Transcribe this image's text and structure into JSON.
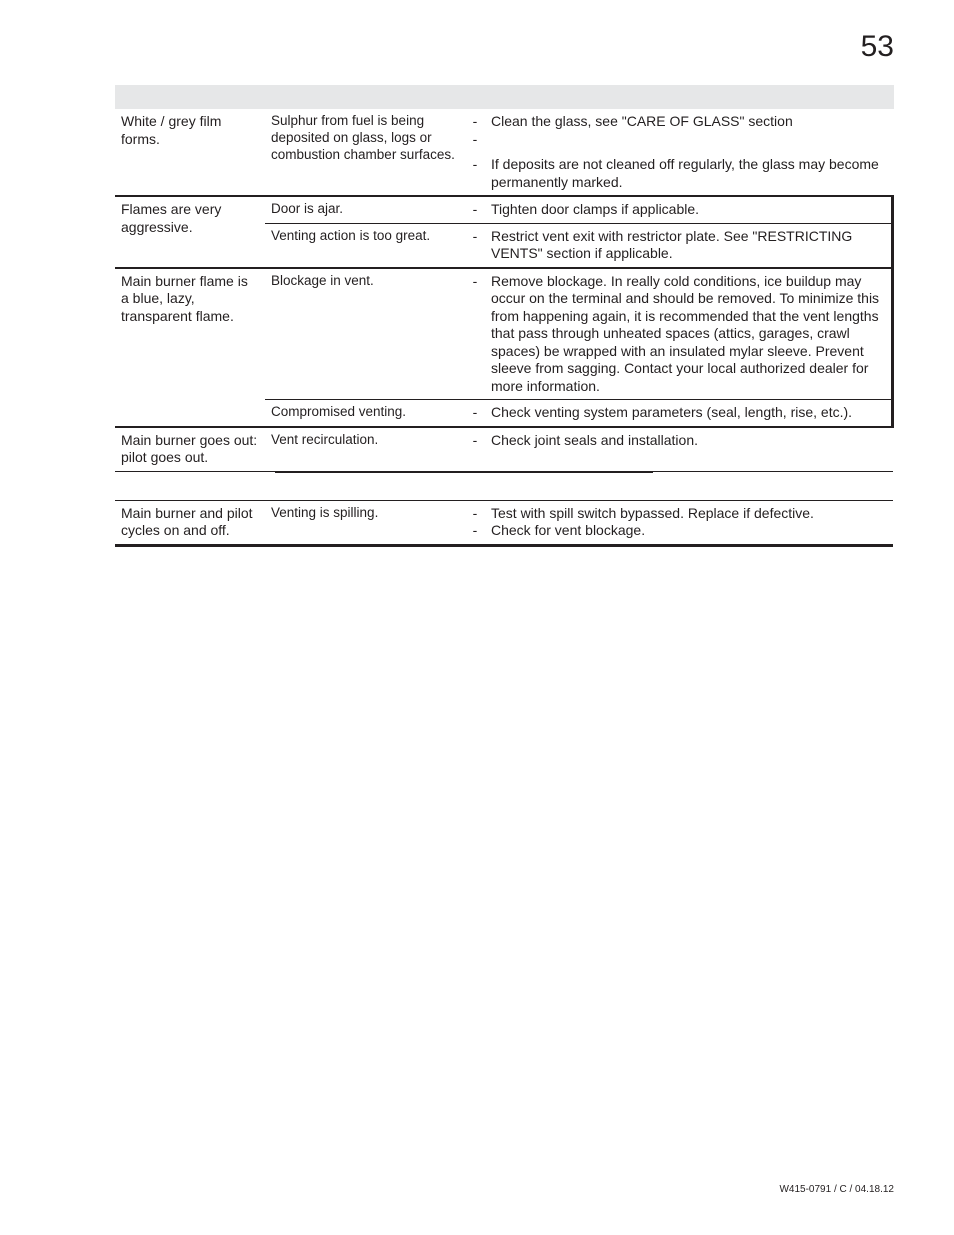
{
  "page_number": "53",
  "footer": "W415-0791 / C / 04.18.12",
  "dash": "-",
  "blank": "",
  "rows": {
    "r1": {
      "symptom": "White / grey film forms.",
      "cause": "Sulphur from fuel is being deposited on glass, logs or combustion chamber surfaces.",
      "sol_a": "Clean the glass, see \"CARE OF GLASS\" section",
      "sol_b": "If deposits are not cleaned off regularly, the glass may become permanently marked."
    },
    "r2": {
      "symptom": "Flames are very aggressive.",
      "cause_a": "Door is ajar.",
      "sol_a": "Tighten door clamps if applicable.",
      "cause_b": "Venting action is too great.",
      "sol_b": "Restrict vent exit with restrictor plate. See \"RESTRICTING VENTS\" section if applicable."
    },
    "r3": {
      "symptom": "Main burner flame is a blue, lazy, transparent flame.",
      "cause_a": "Blockage in vent.",
      "sol_a": "Remove blockage. In really cold conditions, ice buildup may occur on the terminal and should be removed. To minimize this from happening again, it is recommended that the vent lengths that pass through unheated spaces (attics, garages, crawl spaces) be wrapped with an insulated mylar sleeve. Prevent sleeve from sagging.  Contact your local authorized dealer for more information.",
      "cause_b": "Compromised venting.",
      "sol_b": "Check venting system parameters (seal, length, rise, etc.)."
    },
    "r4": {
      "symptom": "Main burner goes out: pilot goes out.",
      "cause": "Vent recirculation.",
      "sol": "Check joint seals and installation."
    },
    "r5": {
      "symptom": "Main burner and pilot cycles on and off.",
      "cause": "Venting is spilling.",
      "sol_a": "Test with spill switch bypassed. Replace if defective.",
      "sol_b": "Check for vent blockage."
    }
  }
}
